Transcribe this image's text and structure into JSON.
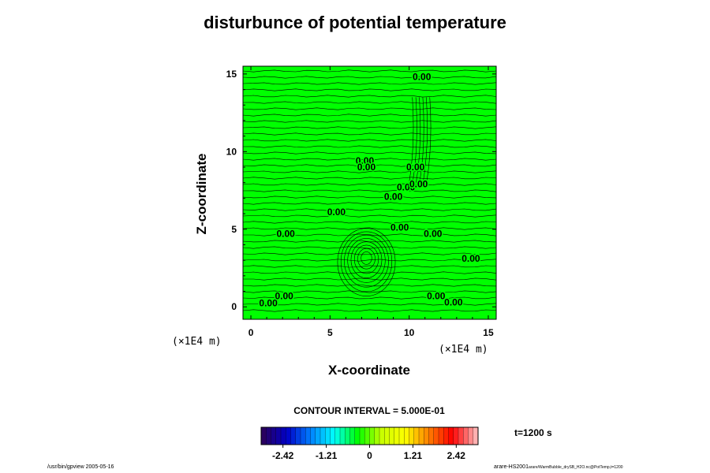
{
  "chart_data": {
    "type": "heatmap",
    "title": "disturbunce of potential temperature",
    "xlabel": "X-coordinate",
    "ylabel": "Z-coordinate",
    "x_unit": "(×1E4 m)",
    "y_unit": "(×1E4 m)",
    "xlim": [
      -0.5,
      15.5
    ],
    "ylim": [
      -0.8,
      15.5
    ],
    "x_ticks": [
      0,
      5,
      10,
      15
    ],
    "y_ticks": [
      0,
      5,
      10,
      15
    ],
    "contour_interval": "CONTOUR INTERVAL = 5.000E-01",
    "time_label": "t=1200 s",
    "contour_labels": [
      {
        "x": 1.1,
        "z": 0.05,
        "text": "0.00"
      },
      {
        "x": 2.1,
        "z": 0.5,
        "text": "0.00"
      },
      {
        "x": 11.7,
        "z": 0.5,
        "text": "0.00"
      },
      {
        "x": 12.8,
        "z": 0.1,
        "text": "0.00"
      },
      {
        "x": 2.2,
        "z": 4.5,
        "text": "0.00"
      },
      {
        "x": 13.9,
        "z": 2.9,
        "text": "0.00"
      },
      {
        "x": 5.4,
        "z": 5.9,
        "text": "0.00"
      },
      {
        "x": 9.4,
        "z": 4.9,
        "text": "0.00"
      },
      {
        "x": 11.5,
        "z": 4.5,
        "text": "0.00"
      },
      {
        "x": 9.0,
        "z": 6.9,
        "text": "0.00"
      },
      {
        "x": 9.8,
        "z": 7.5,
        "text": "0.00"
      },
      {
        "x": 10.6,
        "z": 7.7,
        "text": "0.00"
      },
      {
        "x": 7.2,
        "z": 9.2,
        "text": "0.00"
      },
      {
        "x": 7.3,
        "z": 8.8,
        "text": "0.00"
      },
      {
        "x": 10.4,
        "z": 8.8,
        "text": "0.00"
      },
      {
        "x": 10.8,
        "z": 14.6,
        "text": "0.00"
      }
    ],
    "colorbar": {
      "ticks": [
        "-2.42",
        "-1.21",
        "0",
        "1.21",
        "2.42"
      ],
      "tick_values": [
        -2.42,
        -1.21,
        0,
        1.21,
        2.42
      ],
      "range": [
        -3.03,
        3.03
      ],
      "colors": [
        "#2a0060",
        "#0000c8",
        "#0080ff",
        "#00ffff",
        "#00ff00",
        "#c8ff00",
        "#ffff00",
        "#ff8000",
        "#ff0000",
        "#ffb0b0"
      ]
    }
  },
  "footer": {
    "left": "/usr/bin/gpview 2005-05-16",
    "right_main": "arare-HS2001",
    "right_small": "arare/WarmBubble_drySB_H2O.nc@PotTemp,t=1200"
  }
}
